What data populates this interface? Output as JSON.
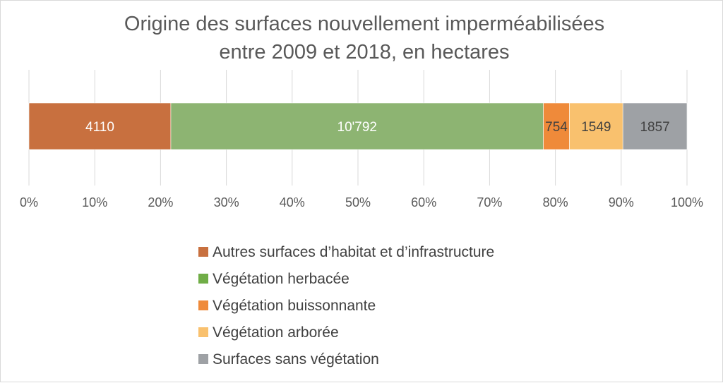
{
  "chart_data": {
    "type": "bar",
    "orientation": "horizontal",
    "stacked": "percent",
    "title": "Origine des surfaces nouvellement imperméabilisées entre 2009 et 2018, en hectares",
    "title_lines": [
      "Origine des surfaces nouvellement imperméabilisées",
      "entre 2009 et 2018, en hectares"
    ],
    "xlabel": "",
    "ylabel": "",
    "xlim": [
      0,
      1
    ],
    "x_ticks": [
      "0%",
      "10%",
      "20%",
      "30%",
      "40%",
      "50%",
      "60%",
      "70%",
      "80%",
      "90%",
      "100%"
    ],
    "grid": true,
    "legend_position": "bottom",
    "series": [
      {
        "name": "Autres surfaces d’habitat et d’infrastructure",
        "value": 4110,
        "label": "4110",
        "color": "#c8703f",
        "label_color": "#ffffff"
      },
      {
        "name": "Végétation herbacée",
        "value": 10792,
        "label": "10'792",
        "color": "#8db472",
        "label_color": "#ffffff"
      },
      {
        "name": "Végétation buissonnante",
        "value": 754,
        "label": "754",
        "color": "#ef8a3a",
        "label_color": "#404040"
      },
      {
        "name": "Végétation arborée",
        "value": 1549,
        "label": "1549",
        "color": "#f9c16e",
        "label_color": "#404040"
      },
      {
        "name": "Surfaces sans végétation",
        "value": 1857,
        "label": "1857",
        "color": "#9ea1a5",
        "label_color": "#404040"
      }
    ],
    "legend_colors": [
      "#c8703f",
      "#70ad47",
      "#ef8a3a",
      "#f9c16e",
      "#9ea1a5"
    ]
  }
}
